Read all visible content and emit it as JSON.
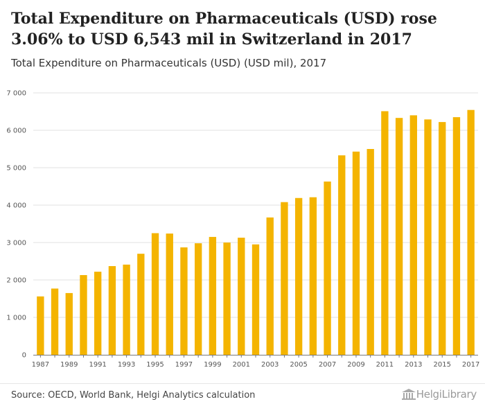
{
  "title": "Total Expenditure on Pharmaceuticals (USD) rose 3.06% to USD 6,543 mil in Switzerland in 2017",
  "subtitle": "Total Expenditure on Pharmaceuticals (USD) (USD mil), 2017",
  "source": "Source: OECD, World Bank, Helgi Analytics calculation",
  "logo_text": "HelgiLibrary",
  "colors": {
    "bar": "#f4b400",
    "grid": "#e2e2e2",
    "axis": "#777777"
  },
  "chart_data": {
    "type": "bar",
    "title": "Total Expenditure on Pharmaceuticals (USD) rose 3.06% to USD 6,543 mil in Switzerland in 2017",
    "subtitle": "Total Expenditure on Pharmaceuticals (USD) (USD mil), 2017",
    "xlabel": "",
    "ylabel": "",
    "ylim": [
      0,
      7000
    ],
    "yticks": [
      0,
      1000,
      2000,
      3000,
      4000,
      5000,
      6000,
      7000
    ],
    "ytick_labels": [
      "0",
      "1 000",
      "2 000",
      "3 000",
      "4 000",
      "5 000",
      "6 000",
      "7 000"
    ],
    "categories": [
      "1987",
      "1988",
      "1989",
      "1990",
      "1991",
      "1992",
      "1993",
      "1994",
      "1995",
      "1996",
      "1997",
      "1998",
      "1999",
      "2000",
      "2001",
      "2002",
      "2003",
      "2004",
      "2005",
      "2006",
      "2007",
      "2008",
      "2009",
      "2010",
      "2011",
      "2012",
      "2013",
      "2014",
      "2015",
      "2016",
      "2017"
    ],
    "xtick_labels": [
      "1987",
      "1989",
      "1991",
      "1993",
      "1995",
      "1997",
      "1999",
      "2001",
      "2003",
      "2005",
      "2007",
      "2009",
      "2011",
      "2013",
      "2015",
      "2017"
    ],
    "values": [
      1560,
      1770,
      1650,
      2130,
      2220,
      2370,
      2410,
      2700,
      3250,
      3240,
      2870,
      2980,
      3150,
      3000,
      3130,
      2950,
      3670,
      4080,
      4190,
      4210,
      4630,
      5330,
      5430,
      5500,
      6510,
      6330,
      6400,
      6290,
      6220,
      6350,
      6543
    ],
    "grid": true,
    "legend": "none"
  }
}
